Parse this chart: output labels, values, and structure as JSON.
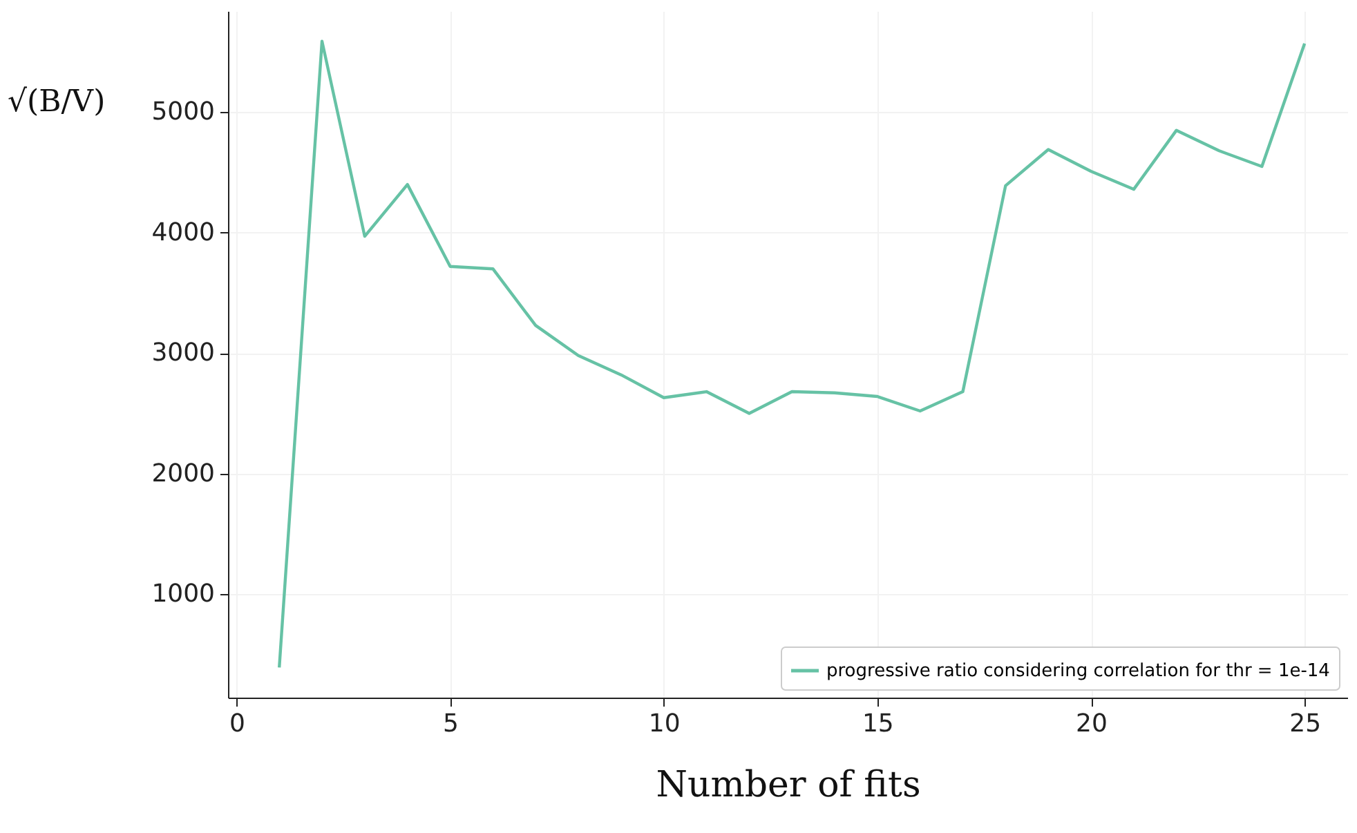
{
  "chart_data": {
    "type": "line",
    "xlabel": "Number of fits",
    "ylabel": "√(B/V)",
    "x": [
      1,
      2,
      3,
      4,
      5,
      6,
      7,
      8,
      9,
      10,
      11,
      12,
      13,
      14,
      15,
      16,
      17,
      18,
      19,
      20,
      21,
      22,
      23,
      24,
      25
    ],
    "series": [
      {
        "name": "progressive ratio considering correlation for thr = 1e-14",
        "color": "#66c2a5",
        "values": [
          390,
          5590,
          3970,
          4400,
          3720,
          3700,
          3230,
          2980,
          2820,
          2630,
          2680,
          2500,
          2680,
          2670,
          2640,
          2520,
          2680,
          4390,
          4690,
          4510,
          4360,
          4850,
          4680,
          4550,
          5570
        ]
      }
    ],
    "xlim": [
      -0.2,
      26
    ],
    "xticks": [
      0,
      5,
      10,
      15,
      20,
      25
    ],
    "ylim": [
      140,
      5840
    ],
    "yticks": [
      1000,
      2000,
      3000,
      4000,
      5000
    ],
    "grid": true,
    "legend": "bottom right",
    "marker": "none",
    "line_style": "solid"
  }
}
